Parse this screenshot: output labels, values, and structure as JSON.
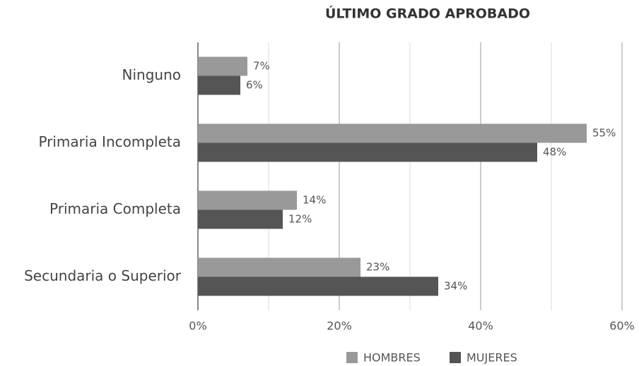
{
  "chart_data": {
    "type": "hbar",
    "title": "ÚLTIMO GRADO APROBADO",
    "categories": [
      "Ninguno",
      "Primaria Incompleta",
      "Primaria Completa",
      "Secundaria o Superior"
    ],
    "series": [
      {
        "name": "HOMBRES",
        "color": "#999999",
        "values": [
          7,
          55,
          14,
          23
        ],
        "value_labels": [
          "7%",
          "55%",
          "14%",
          "23%"
        ]
      },
      {
        "name": "MUJERES",
        "color": "#555555",
        "values": [
          6,
          48,
          12,
          34
        ],
        "value_labels": [
          "6%",
          "48%",
          "12%",
          "34%"
        ]
      }
    ],
    "xlim": [
      0,
      60
    ],
    "xticks": [
      {
        "value": 0,
        "label": "0%"
      },
      {
        "value": 20,
        "label": "20%"
      },
      {
        "value": 40,
        "label": "40%"
      },
      {
        "value": 60,
        "label": "60%"
      }
    ],
    "xminor": [
      10,
      30,
      50
    ],
    "grid": true,
    "legend": "bottom"
  }
}
